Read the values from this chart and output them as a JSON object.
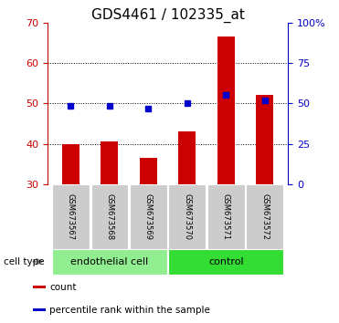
{
  "title": "GDS4461 / 102335_at",
  "samples": [
    "GSM673567",
    "GSM673568",
    "GSM673569",
    "GSM673570",
    "GSM673571",
    "GSM673572"
  ],
  "count_values": [
    40.0,
    40.5,
    36.5,
    43.0,
    66.5,
    52.0
  ],
  "percentile_values": [
    48.5,
    48.5,
    46.5,
    50.0,
    55.5,
    52.0
  ],
  "bar_bottom": 30,
  "ylim_left": [
    30,
    70
  ],
  "ylim_right": [
    0,
    100
  ],
  "yticks_left": [
    30,
    40,
    50,
    60,
    70
  ],
  "yticks_right": [
    0,
    25,
    50,
    75,
    100
  ],
  "ytick_labels_right": [
    "0",
    "25",
    "50",
    "75",
    "100%"
  ],
  "bar_color": "#cc0000",
  "dot_color": "#0000cc",
  "groups": [
    {
      "label": "endothelial cell",
      "indices": [
        0,
        1,
        2
      ],
      "color": "#90ee90"
    },
    {
      "label": "control",
      "indices": [
        3,
        4,
        5
      ],
      "color": "#33dd33"
    }
  ],
  "legend_items": [
    {
      "color": "#cc0000",
      "label": "count"
    },
    {
      "color": "#0000cc",
      "label": "percentile rank within the sample"
    }
  ],
  "bar_width": 0.45,
  "title_fontsize": 11,
  "tick_fontsize": 8,
  "sample_fontsize": 6,
  "group_fontsize": 8
}
